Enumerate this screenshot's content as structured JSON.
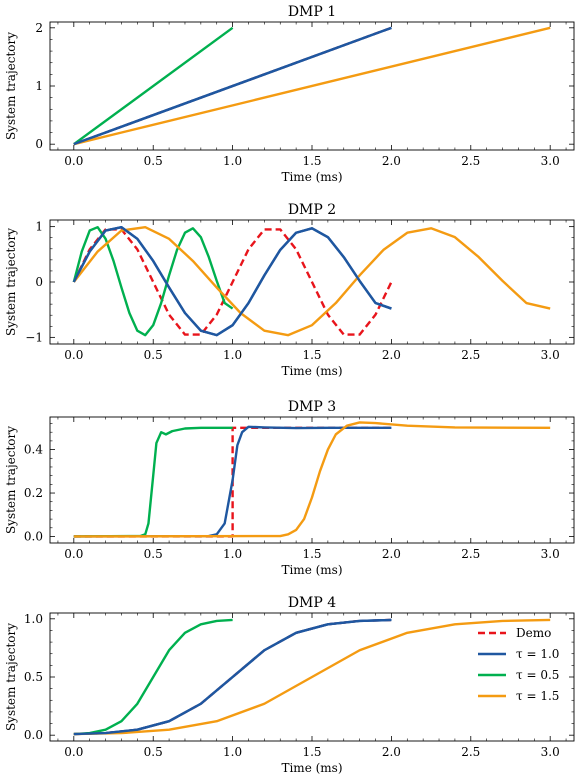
{
  "figure": {
    "legend": [
      {
        "label": "Demo",
        "color": "#e8141b",
        "dash": true
      },
      {
        "label": "τ = 1.0",
        "color": "#1f57a0",
        "dash": false
      },
      {
        "label": "τ = 0.5",
        "color": "#00b04f",
        "dash": false
      },
      {
        "label": "τ = 1.5",
        "color": "#f49b12",
        "dash": false
      }
    ],
    "colors": {
      "demo": "#e8141b",
      "tau_1_0": "#1f57a0",
      "tau_0_5": "#00b04f",
      "tau_1_5": "#f49b12"
    }
  },
  "chart_data": [
    {
      "type": "line",
      "title": "DMP 1",
      "xlabel": "Time (ms)",
      "ylabel": "System trajectory",
      "xlim": [
        -0.15,
        3.15
      ],
      "ylim": [
        -0.1,
        2.1
      ],
      "xticks": [
        0.0,
        0.5,
        1.0,
        1.5,
        2.0,
        2.5,
        3.0
      ],
      "xtick_labels": [
        "0.0",
        "0.5",
        "1.0",
        "1.5",
        "2.0",
        "2.5",
        "3.0"
      ],
      "yticks": [
        0,
        1,
        2
      ],
      "ytick_labels": [
        "0",
        "1",
        "2"
      ],
      "series": [
        {
          "name": "Demo",
          "color": "#e8141b",
          "dash": true,
          "x": [
            0,
            2.0
          ],
          "y": [
            0,
            2.0
          ]
        },
        {
          "name": "τ = 1.0",
          "color": "#1f57a0",
          "x": [
            0,
            2.0
          ],
          "y": [
            0,
            2.0
          ]
        },
        {
          "name": "τ = 0.5",
          "color": "#00b04f",
          "x": [
            0,
            1.0
          ],
          "y": [
            0,
            2.0
          ]
        },
        {
          "name": "τ = 1.5",
          "color": "#f49b12",
          "x": [
            0,
            3.0
          ],
          "y": [
            0,
            2.0
          ]
        }
      ]
    },
    {
      "type": "line",
      "title": "DMP 2",
      "xlabel": "Time (ms)",
      "ylabel": "System trajectory",
      "xlim": [
        -0.15,
        3.15
      ],
      "ylim": [
        -1.12,
        1.12
      ],
      "xticks": [
        0.0,
        0.5,
        1.0,
        1.5,
        2.0,
        2.5,
        3.0
      ],
      "xtick_labels": [
        "0.0",
        "0.5",
        "1.0",
        "1.5",
        "2.0",
        "2.5",
        "3.0"
      ],
      "yticks": [
        -1,
        0,
        1
      ],
      "ytick_labels": [
        "−1",
        "0",
        "1"
      ],
      "series": [
        {
          "name": "Demo",
          "color": "#e8141b",
          "dash": true,
          "x": [
            0,
            0.1,
            0.2,
            0.3,
            0.4,
            0.5,
            0.6,
            0.7,
            0.8,
            0.9,
            1.0,
            1.1,
            1.2,
            1.3,
            1.4,
            1.5,
            1.6,
            1.7,
            1.8,
            1.9,
            2.0
          ],
          "y": [
            0,
            0.59,
            0.95,
            0.95,
            0.59,
            0,
            -0.59,
            -0.95,
            -0.95,
            -0.59,
            0,
            0.59,
            0.95,
            0.95,
            0.59,
            0,
            -0.59,
            -0.95,
            -0.95,
            -0.59,
            0
          ]
        },
        {
          "name": "τ = 1.0",
          "color": "#1f57a0",
          "x": [
            0,
            0.1,
            0.2,
            0.3,
            0.4,
            0.5,
            0.6,
            0.7,
            0.8,
            0.9,
            1.0,
            1.1,
            1.2,
            1.3,
            1.4,
            1.5,
            1.6,
            1.7,
            1.8,
            1.9,
            2.0
          ],
          "y": [
            0,
            0.55,
            0.93,
            0.99,
            0.78,
            0.38,
            -0.1,
            -0.56,
            -0.88,
            -0.96,
            -0.78,
            -0.38,
            0.12,
            0.58,
            0.89,
            0.97,
            0.81,
            0.45,
            0.02,
            -0.38,
            -0.48
          ]
        },
        {
          "name": "τ = 0.5",
          "color": "#00b04f",
          "x": [
            0,
            0.05,
            0.1,
            0.15,
            0.2,
            0.25,
            0.3,
            0.35,
            0.4,
            0.45,
            0.5,
            0.55,
            0.6,
            0.65,
            0.7,
            0.75,
            0.8,
            0.85,
            0.9,
            0.95,
            1.0
          ],
          "y": [
            0,
            0.55,
            0.93,
            0.99,
            0.78,
            0.38,
            -0.1,
            -0.56,
            -0.88,
            -0.96,
            -0.78,
            -0.38,
            0.12,
            0.58,
            0.89,
            0.97,
            0.81,
            0.45,
            0.02,
            -0.38,
            -0.48
          ]
        },
        {
          "name": "τ = 1.5",
          "color": "#f49b12",
          "x": [
            0,
            0.15,
            0.3,
            0.45,
            0.6,
            0.75,
            0.9,
            1.05,
            1.2,
            1.35,
            1.5,
            1.65,
            1.8,
            1.95,
            2.1,
            2.25,
            2.4,
            2.55,
            2.7,
            2.85,
            3.0
          ],
          "y": [
            0,
            0.55,
            0.93,
            0.99,
            0.78,
            0.38,
            -0.1,
            -0.56,
            -0.88,
            -0.96,
            -0.78,
            -0.38,
            0.12,
            0.58,
            0.89,
            0.97,
            0.81,
            0.45,
            0.02,
            -0.38,
            -0.48
          ]
        }
      ]
    },
    {
      "type": "line",
      "title": "DMP 3",
      "xlabel": "Time (ms)",
      "ylabel": "System trajectory",
      "xlim": [
        -0.15,
        3.15
      ],
      "ylim": [
        -0.03,
        0.55
      ],
      "xticks": [
        0.0,
        0.5,
        1.0,
        1.5,
        2.0,
        2.5,
        3.0
      ],
      "xtick_labels": [
        "0.0",
        "0.5",
        "1.0",
        "1.5",
        "2.0",
        "2.5",
        "3.0"
      ],
      "yticks": [
        0.0,
        0.2,
        0.4
      ],
      "ytick_labels": [
        "0.0",
        "0.2",
        "0.4"
      ],
      "series": [
        {
          "name": "Demo",
          "color": "#e8141b",
          "dash": true,
          "x": [
            0,
            1.0,
            1.0,
            2.0
          ],
          "y": [
            0,
            0,
            0.5,
            0.5
          ]
        },
        {
          "name": "τ = 1.0",
          "color": "#1f57a0",
          "x": [
            0,
            0.85,
            0.9,
            0.95,
            1.0,
            1.03,
            1.06,
            1.1,
            1.2,
            1.4,
            1.6,
            2.0
          ],
          "y": [
            0,
            0.002,
            0.01,
            0.06,
            0.26,
            0.42,
            0.48,
            0.505,
            0.502,
            0.499,
            0.5,
            0.5
          ]
        },
        {
          "name": "τ = 0.5",
          "color": "#00b04f",
          "x": [
            0,
            0.42,
            0.45,
            0.47,
            0.5,
            0.52,
            0.55,
            0.58,
            0.62,
            0.7,
            0.8,
            1.0
          ],
          "y": [
            0,
            0.002,
            0.01,
            0.06,
            0.28,
            0.43,
            0.48,
            0.47,
            0.485,
            0.497,
            0.5,
            0.5
          ]
        },
        {
          "name": "τ = 1.5",
          "color": "#f49b12",
          "x": [
            0,
            1.3,
            1.35,
            1.4,
            1.45,
            1.5,
            1.55,
            1.6,
            1.65,
            1.72,
            1.8,
            1.9,
            2.1,
            2.4,
            3.0
          ],
          "y": [
            0,
            0.002,
            0.01,
            0.03,
            0.08,
            0.18,
            0.3,
            0.4,
            0.47,
            0.51,
            0.525,
            0.522,
            0.51,
            0.502,
            0.5
          ]
        }
      ]
    },
    {
      "type": "line",
      "title": "DMP 4",
      "xlabel": "Time (ms)",
      "ylabel": "System trajectory",
      "xlim": [
        -0.15,
        3.15
      ],
      "ylim": [
        -0.05,
        1.05
      ],
      "xticks": [
        0.0,
        0.5,
        1.0,
        1.5,
        2.0,
        2.5,
        3.0
      ],
      "xtick_labels": [
        "0.0",
        "0.5",
        "1.0",
        "1.5",
        "2.0",
        "2.5",
        "3.0"
      ],
      "yticks": [
        0.0,
        0.5,
        1.0
      ],
      "ytick_labels": [
        "0.0",
        "0.5",
        "1.0"
      ],
      "legend_position": "upper right",
      "series": [
        {
          "name": "Demo",
          "color": "#e8141b",
          "dash": true,
          "x": [
            0,
            0.2,
            0.4,
            0.6,
            0.8,
            1.0,
            1.2,
            1.4,
            1.6,
            1.8,
            2.0
          ],
          "y": [
            0.01,
            0.018,
            0.047,
            0.12,
            0.27,
            0.5,
            0.73,
            0.88,
            0.953,
            0.982,
            0.99
          ]
        },
        {
          "name": "τ = 1.0",
          "color": "#1f57a0",
          "x": [
            0,
            0.2,
            0.4,
            0.6,
            0.8,
            1.0,
            1.2,
            1.4,
            1.6,
            1.8,
            2.0
          ],
          "y": [
            0.01,
            0.018,
            0.047,
            0.12,
            0.27,
            0.5,
            0.73,
            0.88,
            0.953,
            0.982,
            0.99
          ]
        },
        {
          "name": "τ = 0.5",
          "color": "#00b04f",
          "x": [
            0,
            0.1,
            0.2,
            0.3,
            0.4,
            0.5,
            0.6,
            0.7,
            0.8,
            0.9,
            1.0
          ],
          "y": [
            0.01,
            0.018,
            0.047,
            0.12,
            0.27,
            0.5,
            0.73,
            0.88,
            0.953,
            0.982,
            0.99
          ]
        },
        {
          "name": "τ = 1.5",
          "color": "#f49b12",
          "x": [
            0,
            0.3,
            0.6,
            0.9,
            1.2,
            1.5,
            1.8,
            2.1,
            2.4,
            2.7,
            3.0
          ],
          "y": [
            0.01,
            0.018,
            0.047,
            0.12,
            0.27,
            0.5,
            0.73,
            0.88,
            0.953,
            0.982,
            0.99
          ]
        }
      ]
    }
  ]
}
